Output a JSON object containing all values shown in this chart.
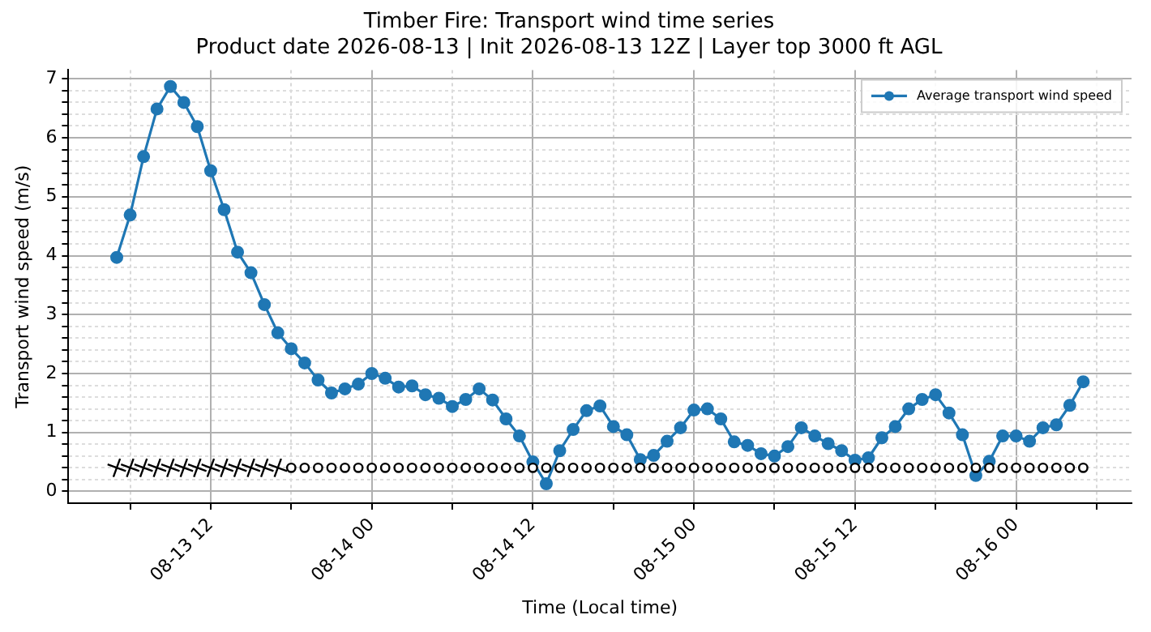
{
  "chart_data": {
    "type": "line",
    "title": "Timber Fire: Transport wind time series",
    "subtitle": "Product date 2026-08-13 | Init 2026-08-13 12Z | Layer top 3000 ft AGL",
    "xlabel": "Time (Local time)",
    "ylabel": "Transport wind speed (m/s)",
    "x": [
      "2026-08-13T05:00",
      "2026-08-13T06:00",
      "2026-08-13T07:00",
      "2026-08-13T08:00",
      "2026-08-13T09:00",
      "2026-08-13T10:00",
      "2026-08-13T11:00",
      "2026-08-13T12:00",
      "2026-08-13T13:00",
      "2026-08-13T14:00",
      "2026-08-13T15:00",
      "2026-08-13T16:00",
      "2026-08-13T17:00",
      "2026-08-13T18:00",
      "2026-08-13T19:00",
      "2026-08-13T20:00",
      "2026-08-13T21:00",
      "2026-08-13T22:00",
      "2026-08-13T23:00",
      "2026-08-14T00:00",
      "2026-08-14T01:00",
      "2026-08-14T02:00",
      "2026-08-14T03:00",
      "2026-08-14T04:00",
      "2026-08-14T05:00",
      "2026-08-14T06:00",
      "2026-08-14T07:00",
      "2026-08-14T08:00",
      "2026-08-14T09:00",
      "2026-08-14T10:00",
      "2026-08-14T11:00",
      "2026-08-14T12:00",
      "2026-08-14T13:00",
      "2026-08-14T14:00",
      "2026-08-14T15:00",
      "2026-08-14T16:00",
      "2026-08-14T17:00",
      "2026-08-14T18:00",
      "2026-08-14T19:00",
      "2026-08-14T20:00",
      "2026-08-14T21:00",
      "2026-08-14T22:00",
      "2026-08-14T23:00",
      "2026-08-15T00:00",
      "2026-08-15T01:00",
      "2026-08-15T02:00",
      "2026-08-15T03:00",
      "2026-08-15T04:00",
      "2026-08-15T05:00",
      "2026-08-15T06:00",
      "2026-08-15T07:00",
      "2026-08-15T08:00",
      "2026-08-15T09:00",
      "2026-08-15T10:00",
      "2026-08-15T11:00",
      "2026-08-15T12:00",
      "2026-08-15T13:00",
      "2026-08-15T14:00",
      "2026-08-15T15:00",
      "2026-08-15T16:00",
      "2026-08-15T17:00",
      "2026-08-15T18:00",
      "2026-08-15T19:00",
      "2026-08-15T20:00",
      "2026-08-15T21:00",
      "2026-08-15T22:00",
      "2026-08-15T23:00",
      "2026-08-16T00:00",
      "2026-08-16T01:00",
      "2026-08-16T02:00",
      "2026-08-16T03:00",
      "2026-08-16T04:00",
      "2026-08-16T05:00"
    ],
    "series": [
      {
        "name": "Average transport wind speed",
        "color": "#1f77b4",
        "values": [
          3.97,
          4.69,
          5.68,
          6.49,
          6.87,
          6.6,
          6.19,
          5.44,
          4.78,
          4.06,
          3.71,
          3.17,
          2.69,
          2.42,
          2.18,
          1.89,
          1.67,
          1.74,
          1.82,
          2.0,
          1.92,
          1.77,
          1.79,
          1.64,
          1.58,
          1.44,
          1.56,
          1.74,
          1.55,
          1.23,
          0.94,
          0.5,
          0.13,
          0.69,
          1.05,
          1.37,
          1.45,
          1.1,
          0.96,
          0.54,
          0.61,
          0.85,
          1.08,
          1.38,
          1.4,
          1.23,
          0.84,
          0.78,
          0.64,
          0.6,
          0.76,
          1.08,
          0.94,
          0.81,
          0.69,
          0.53,
          0.57,
          0.91,
          1.1,
          1.4,
          1.56,
          1.64,
          1.33,
          0.96,
          0.27,
          0.51,
          0.94,
          0.94,
          0.85,
          1.08,
          1.13,
          1.46,
          1.86
        ]
      },
      {
        "type": "scatter",
        "color": "#000000",
        "marker": "cross",
        "x": [
          "2026-08-13T05:00",
          "2026-08-13T06:00",
          "2026-08-13T07:00",
          "2026-08-13T08:00",
          "2026-08-13T09:00",
          "2026-08-13T10:00",
          "2026-08-13T11:00",
          "2026-08-13T12:00",
          "2026-08-13T13:00",
          "2026-08-13T14:00",
          "2026-08-13T15:00",
          "2026-08-13T16:00",
          "2026-08-13T17:00"
        ],
        "values": [
          0.4,
          0.4,
          0.4,
          0.4,
          0.4,
          0.4,
          0.4,
          0.4,
          0.4,
          0.4,
          0.4,
          0.4,
          0.4
        ]
      },
      {
        "type": "scatter",
        "color": "#000000",
        "marker": "circle",
        "x": [
          "2026-08-13T18:00",
          "2026-08-13T19:00",
          "2026-08-13T20:00",
          "2026-08-13T21:00",
          "2026-08-13T22:00",
          "2026-08-13T23:00",
          "2026-08-14T00:00",
          "2026-08-14T01:00",
          "2026-08-14T02:00",
          "2026-08-14T03:00",
          "2026-08-14T04:00",
          "2026-08-14T05:00",
          "2026-08-14T06:00",
          "2026-08-14T07:00",
          "2026-08-14T08:00",
          "2026-08-14T09:00",
          "2026-08-14T10:00",
          "2026-08-14T11:00",
          "2026-08-14T12:00",
          "2026-08-14T13:00",
          "2026-08-14T14:00",
          "2026-08-14T15:00",
          "2026-08-14T16:00",
          "2026-08-14T17:00",
          "2026-08-14T18:00",
          "2026-08-14T19:00",
          "2026-08-14T20:00",
          "2026-08-14T21:00",
          "2026-08-14T22:00",
          "2026-08-14T23:00",
          "2026-08-15T00:00",
          "2026-08-15T01:00",
          "2026-08-15T02:00",
          "2026-08-15T03:00",
          "2026-08-15T04:00",
          "2026-08-15T05:00",
          "2026-08-15T06:00",
          "2026-08-15T07:00",
          "2026-08-15T08:00",
          "2026-08-15T09:00",
          "2026-08-15T10:00",
          "2026-08-15T11:00",
          "2026-08-15T12:00",
          "2026-08-15T13:00",
          "2026-08-15T14:00",
          "2026-08-15T15:00",
          "2026-08-15T16:00",
          "2026-08-15T17:00",
          "2026-08-15T18:00",
          "2026-08-15T19:00",
          "2026-08-15T20:00",
          "2026-08-15T21:00",
          "2026-08-15T22:00",
          "2026-08-15T23:00",
          "2026-08-16T00:00",
          "2026-08-16T01:00",
          "2026-08-16T02:00",
          "2026-08-16T03:00",
          "2026-08-16T04:00",
          "2026-08-16T05:00"
        ],
        "values": [
          0.4,
          0.4,
          0.4,
          0.4,
          0.4,
          0.4,
          0.4,
          0.4,
          0.4,
          0.4,
          0.4,
          0.4,
          0.4,
          0.4,
          0.4,
          0.4,
          0.4,
          0.4,
          0.4,
          0.4,
          0.4,
          0.4,
          0.4,
          0.4,
          0.4,
          0.4,
          0.4,
          0.4,
          0.4,
          0.4,
          0.4,
          0.4,
          0.4,
          0.4,
          0.4,
          0.4,
          0.4,
          0.4,
          0.4,
          0.4,
          0.4,
          0.4,
          0.4,
          0.4,
          0.4,
          0.4,
          0.4,
          0.4,
          0.4,
          0.4,
          0.4,
          0.4,
          0.4,
          0.4,
          0.4,
          0.4,
          0.4,
          0.4,
          0.4,
          0.4
        ]
      }
    ],
    "xlim": [
      "2026-08-13T01:24",
      "2026-08-16T08:36"
    ],
    "xticks": [
      {
        "value": "2026-08-13T06:00",
        "label": null
      },
      {
        "value": "2026-08-13T12:00",
        "label": "08-13 12"
      },
      {
        "value": "2026-08-13T18:00",
        "label": null
      },
      {
        "value": "2026-08-14T00:00",
        "label": "08-14 00"
      },
      {
        "value": "2026-08-14T06:00",
        "label": null
      },
      {
        "value": "2026-08-14T12:00",
        "label": "08-14 12"
      },
      {
        "value": "2026-08-14T18:00",
        "label": null
      },
      {
        "value": "2026-08-15T00:00",
        "label": "08-15 00"
      },
      {
        "value": "2026-08-15T06:00",
        "label": null
      },
      {
        "value": "2026-08-15T12:00",
        "label": "08-15 12"
      },
      {
        "value": "2026-08-15T18:00",
        "label": null
      },
      {
        "value": "2026-08-16T00:00",
        "label": "08-16 00"
      },
      {
        "value": "2026-08-16T06:00",
        "label": null
      }
    ],
    "ylim": [
      -0.2,
      7.15
    ],
    "yticks": [
      0,
      {
        "value": 0.2,
        "label": null
      },
      {
        "value": 0.4,
        "label": null
      },
      {
        "value": 0.6,
        "label": null
      },
      {
        "value": 0.8,
        "label": null
      },
      1,
      {
        "value": 1.2,
        "label": null
      },
      {
        "value": 1.4,
        "label": null
      },
      {
        "value": 1.6,
        "label": null
      },
      {
        "value": 1.8,
        "label": null
      },
      2,
      {
        "value": 2.2,
        "label": null
      },
      {
        "value": 2.4,
        "label": null
      },
      {
        "value": 2.6,
        "label": null
      },
      {
        "value": 2.8,
        "label": null
      },
      3,
      {
        "value": 3.2,
        "label": null
      },
      {
        "value": 3.4,
        "label": null
      },
      {
        "value": 3.6,
        "label": null
      },
      {
        "value": 3.8,
        "label": null
      },
      4,
      {
        "value": 4.2,
        "label": null
      },
      {
        "value": 4.4,
        "label": null
      },
      {
        "value": 4.6,
        "label": null
      },
      {
        "value": 4.8,
        "label": null
      },
      5,
      {
        "value": 5.2,
        "label": null
      },
      {
        "value": 5.4,
        "label": null
      },
      {
        "value": 5.6,
        "label": null
      },
      {
        "value": 5.8,
        "label": null
      },
      6,
      {
        "value": 6.2,
        "label": null
      },
      {
        "value": 6.4,
        "label": null
      },
      {
        "value": 6.6,
        "label": null
      },
      {
        "value": 6.8,
        "label": null
      },
      7
    ],
    "grid": true,
    "legend": "top right",
    "marker": "circle",
    "line_style": "solid"
  }
}
